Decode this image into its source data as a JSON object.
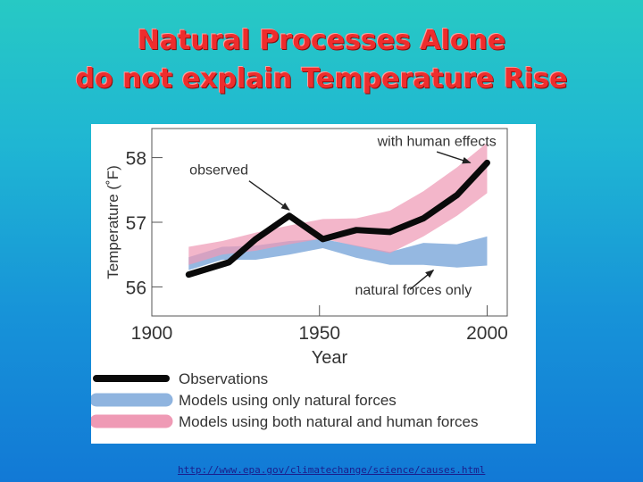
{
  "slide": {
    "title_line1": "Natural Processes Alone",
    "title_line2": "do not explain Temperature Rise",
    "source_url": "http://www.epa.gov/climatechange/science/causes.html"
  },
  "colors": {
    "observations": "#0a0a0a",
    "natural_band": "#8fb4df",
    "human_band": "#ef9ab5",
    "overlap": "#a48fbc",
    "title": "#ee2d2d"
  },
  "chart_data": {
    "type": "line",
    "xlabel": "Year",
    "ylabel": "Temperature (˚F)",
    "x_ticks": [
      "1900",
      "1950",
      "2000"
    ],
    "y_ticks": [
      "56",
      "57",
      "58"
    ],
    "xlim": [
      1900,
      2006
    ],
    "ylim": [
      55.55,
      58.45
    ],
    "grid": false,
    "legend_position": "bottom",
    "annotations": [
      {
        "text": "with human effects",
        "x": 1985,
        "y": 58.18
      },
      {
        "text": "observed",
        "x": 1920,
        "y": 57.74
      },
      {
        "text": "natural forces only",
        "x": 1978,
        "y": 55.88
      }
    ],
    "legend": [
      {
        "label": "Observations",
        "color": "#0a0a0a"
      },
      {
        "label": "Models using only natural forces",
        "color": "#8fb4df"
      },
      {
        "label": "Models using both natural and human forces",
        "color": "#ef9ab5"
      }
    ],
    "series": [
      {
        "name": "Observations",
        "type": "line",
        "x": [
          1911,
          1923,
          1931,
          1941,
          1951,
          1961,
          1971,
          1981,
          1991,
          2000
        ],
        "y": [
          56.19,
          56.38,
          56.74,
          57.1,
          56.74,
          56.88,
          56.85,
          57.06,
          57.42,
          57.92
        ]
      },
      {
        "name": "Models using only natural forces",
        "type": "band",
        "x": [
          1911,
          1921,
          1931,
          1941,
          1951,
          1961,
          1971,
          1981,
          1991,
          2000
        ],
        "upper": [
          56.46,
          56.62,
          56.64,
          56.71,
          56.74,
          56.64,
          56.54,
          56.68,
          56.66,
          56.78
        ],
        "lower": [
          56.26,
          56.42,
          56.42,
          56.5,
          56.6,
          56.45,
          56.34,
          56.34,
          56.3,
          56.33
        ]
      },
      {
        "name": "Models using both natural and human forces",
        "type": "band",
        "x": [
          1911,
          1921,
          1931,
          1941,
          1951,
          1961,
          1971,
          1981,
          1991,
          2000
        ],
        "upper": [
          56.62,
          56.71,
          56.84,
          56.95,
          57.05,
          57.06,
          57.18,
          57.48,
          57.85,
          58.23
        ],
        "lower": [
          56.34,
          56.5,
          56.56,
          56.66,
          56.75,
          56.63,
          56.52,
          56.78,
          57.1,
          57.45
        ]
      }
    ]
  }
}
